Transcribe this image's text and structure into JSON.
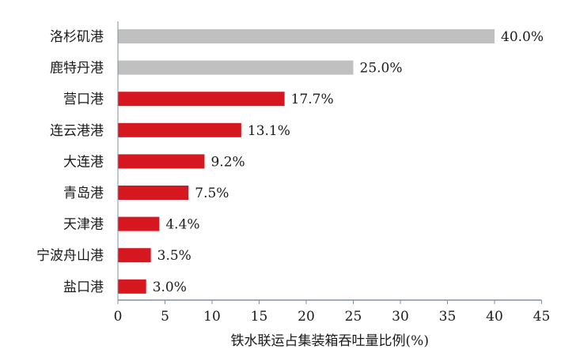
{
  "chart_data": {
    "type": "bar",
    "orientation": "horizontal",
    "categories": [
      "洛杉矶港",
      "鹿特丹港",
      "营口港",
      "连云港港",
      "大连港",
      "青岛港",
      "天津港",
      "宁波舟山港",
      "盐口港"
    ],
    "values": [
      40.0,
      25.0,
      17.7,
      13.1,
      9.2,
      7.5,
      4.4,
      3.5,
      3.0
    ],
    "value_labels": [
      "40.0%",
      "25.0%",
      "17.7%",
      "13.1%",
      "9.2%",
      "7.5%",
      "4.4%",
      "3.5%",
      "3.0%"
    ],
    "bar_colors": [
      "#c0c0c0",
      "#c0c0c0",
      "#d7171f",
      "#d7171f",
      "#d7171f",
      "#d7171f",
      "#d7171f",
      "#d7171f",
      "#d7171f"
    ],
    "title": "",
    "xlabel": "铁水联运占集装箱吞吐量比例(%)",
    "ylabel": "",
    "xlim": [
      0,
      45
    ],
    "xticks": [
      0,
      5,
      10,
      15,
      20,
      25,
      30,
      35,
      40,
      45
    ],
    "grid": false,
    "legend": "none",
    "axis_color": "#7f8fa6"
  }
}
